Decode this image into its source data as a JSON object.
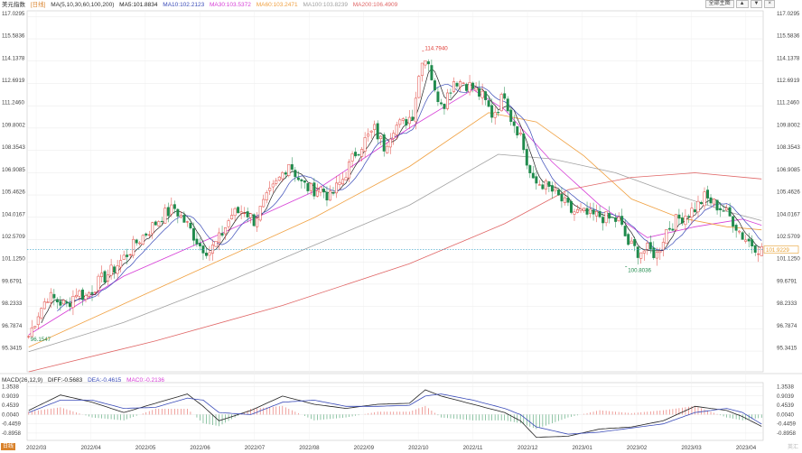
{
  "header": {
    "title": "美元指数",
    "period_tag": "[日线]",
    "ma_label": "MA(5,10,30,60,100,200)",
    "ma_items": [
      {
        "text": "MA5:101.8834",
        "color": "#222222"
      },
      {
        "text": "MA10:102.2123",
        "color": "#3a4bb8"
      },
      {
        "text": "MA30:103.5372",
        "color": "#d63cd6"
      },
      {
        "text": "MA60:103.2471",
        "color": "#f0a040"
      },
      {
        "text": "MA100:103.8239",
        "color": "#a0a0a0"
      },
      {
        "text": "MA200:106.4909",
        "color": "#e06666"
      }
    ]
  },
  "toolbar": {
    "btn1": "全部主图",
    "btn2": "▲",
    "btn3": "▼",
    "btn4": "×"
  },
  "macd_header": {
    "label": "MACD(26,12,9)",
    "diff": "DIFF:-0.5683",
    "dea": "DEA:-0.4615",
    "mac": "MAC0:-0.2136"
  },
  "period_label": "日线",
  "watermark": "英汇",
  "colors": {
    "up": "#e0413b",
    "down": "#1f8a4c",
    "grid": "#e8e8e8",
    "current": "#e8a030",
    "dotted": "#35a0c8"
  },
  "chart_data": [
    {
      "type": "candlestick",
      "title": "",
      "ylim": [
        94.0,
        117.4
      ],
      "y_ticks": [
        "117.0295",
        "115.5836",
        "114.1378",
        "112.6919",
        "111.2460",
        "109.8002",
        "108.3543",
        "106.9085",
        "105.4626",
        "104.0167",
        "102.5709",
        "101.1250",
        "99.6791",
        "98.2333",
        "96.7874",
        "95.3415"
      ],
      "y_tick_values": [
        117.0295,
        115.5836,
        114.1378,
        112.6919,
        111.246,
        109.8002,
        108.3543,
        106.9085,
        105.4626,
        104.0167,
        102.5709,
        101.125,
        99.6791,
        98.2333,
        96.7874,
        95.3415
      ],
      "x_labels": [
        "2022/03",
        "2022/04",
        "2022/05",
        "2022/06",
        "2022/07",
        "2022/08",
        "2022/09",
        "2022/10",
        "2022/11",
        "2022/12",
        "2023/01",
        "2023/02",
        "2023/03",
        "2023/04"
      ],
      "current_price": "101.9229",
      "current_value": 101.9229,
      "annotations": [
        {
          "text": "114.7940",
          "value": 114.794,
          "color": "#e0413b"
        },
        {
          "text": "100.8036",
          "value": 100.8036,
          "color": "#1f8a4c"
        },
        {
          "text": "96.1547",
          "value": 96.1547,
          "color": "#1f8a4c"
        }
      ],
      "price_path": [
        [
          0,
          96.3
        ],
        [
          3,
          97.8
        ],
        [
          6,
          98.9
        ],
        [
          9,
          98.6
        ],
        [
          12,
          98.3
        ],
        [
          15,
          99.2
        ],
        [
          18,
          98.9
        ],
        [
          22,
          99.8
        ],
        [
          26,
          100.5
        ],
        [
          30,
          101.4
        ],
        [
          34,
          102.4
        ],
        [
          38,
          103.2
        ],
        [
          42,
          104.1
        ],
        [
          46,
          104.6
        ],
        [
          50,
          103.5
        ],
        [
          54,
          102.2
        ],
        [
          57,
          101.8
        ],
        [
          60,
          102.6
        ],
        [
          64,
          104.2
        ],
        [
          68,
          104.5
        ],
        [
          71,
          103.8
        ],
        [
          75,
          105.2
        ],
        [
          79,
          106.5
        ],
        [
          82,
          107.6
        ],
        [
          86,
          106.2
        ],
        [
          89,
          105.8
        ],
        [
          92,
          105.9
        ],
        [
          95,
          105.3
        ],
        [
          99,
          106.5
        ],
        [
          103,
          108.2
        ],
        [
          106,
          109.0
        ],
        [
          109,
          109.7
        ],
        [
          112,
          108.6
        ],
        [
          115,
          109.9
        ],
        [
          118,
          110.1
        ],
        [
          121,
          110.7
        ],
        [
          124,
          114.4
        ],
        [
          126,
          114.2
        ],
        [
          128,
          112.0
        ],
        [
          131,
          111.5
        ],
        [
          134,
          112.9
        ],
        [
          137,
          112.8
        ],
        [
          140,
          112.4
        ],
        [
          143,
          111.8
        ],
        [
          146,
          110.7
        ],
        [
          148,
          111.2
        ],
        [
          150,
          112.1
        ],
        [
          152,
          110.5
        ],
        [
          155,
          109.4
        ],
        [
          157,
          107.5
        ],
        [
          159,
          106.2
        ],
        [
          162,
          106.2
        ],
        [
          165,
          105.7
        ],
        [
          168,
          105.1
        ],
        [
          171,
          104.4
        ],
        [
          174,
          104.3
        ],
        [
          177,
          104.1
        ],
        [
          180,
          104.1
        ],
        [
          183,
          103.9
        ],
        [
          186,
          103.8
        ],
        [
          189,
          102.3
        ],
        [
          192,
          101.8
        ],
        [
          195,
          101.9
        ],
        [
          198,
          101.6
        ],
        [
          201,
          103.2
        ],
        [
          204,
          103.8
        ],
        [
          207,
          104.2
        ],
        [
          210,
          104.6
        ],
        [
          213,
          105.3
        ],
        [
          216,
          104.9
        ],
        [
          219,
          104.5
        ],
        [
          222,
          103.8
        ],
        [
          225,
          102.8
        ],
        [
          228,
          102.3
        ],
        [
          231,
          101.9
        ]
      ],
      "ma_lines": [
        {
          "name": "MA30",
          "color": "#d63cd6",
          "points": [
            [
              0,
              96.4
            ],
            [
              30,
              100.2
            ],
            [
              60,
              102.9
            ],
            [
              90,
              105.7
            ],
            [
              120,
              109.8
            ],
            [
              140,
              112.3
            ],
            [
              150,
              111.0
            ],
            [
              165,
              107.6
            ],
            [
              180,
              104.8
            ],
            [
              195,
              102.7
            ],
            [
              210,
              103.4
            ],
            [
              225,
              103.9
            ],
            [
              231,
              103.5
            ]
          ]
        },
        {
          "name": "MA60",
          "color": "#f0a040",
          "points": [
            [
              0,
              95.6
            ],
            [
              30,
              98.4
            ],
            [
              60,
              101.2
            ],
            [
              90,
              104.0
            ],
            [
              120,
              107.3
            ],
            [
              145,
              110.8
            ],
            [
              160,
              110.2
            ],
            [
              175,
              108.0
            ],
            [
              190,
              105.2
            ],
            [
              205,
              104.0
            ],
            [
              220,
              103.4
            ],
            [
              231,
              103.2
            ]
          ]
        },
        {
          "name": "MA100",
          "color": "#a0a0a0",
          "points": [
            [
              0,
              95.3
            ],
            [
              30,
              97.2
            ],
            [
              60,
              99.6
            ],
            [
              90,
              102.2
            ],
            [
              120,
              104.8
            ],
            [
              148,
              108.1
            ],
            [
              165,
              107.8
            ],
            [
              185,
              106.9
            ],
            [
              205,
              105.4
            ],
            [
              220,
              104.4
            ],
            [
              231,
              103.8
            ]
          ]
        },
        {
          "name": "MA200",
          "color": "#e06666",
          "points": [
            [
              0,
              94.0
            ],
            [
              40,
              96.0
            ],
            [
              80,
              98.3
            ],
            [
              120,
              101.0
            ],
            [
              150,
              103.6
            ],
            [
              170,
              105.8
            ],
            [
              190,
              106.6
            ],
            [
              210,
              106.9
            ],
            [
              231,
              106.5
            ]
          ]
        }
      ]
    },
    {
      "type": "macd",
      "title": "",
      "ylim": [
        -1.25,
        1.55
      ],
      "y_ticks": [
        "1.3538",
        "0.9039",
        "0.4539",
        "0.0040",
        "-0.4459",
        "-0.8958"
      ],
      "y_tick_values": [
        1.3538,
        0.9039,
        0.4539,
        0.004,
        -0.4459,
        -0.8958
      ],
      "diff_path": [
        [
          0,
          0.2
        ],
        [
          10,
          0.95
        ],
        [
          20,
          0.6
        ],
        [
          30,
          0.1
        ],
        [
          40,
          0.55
        ],
        [
          50,
          1.0
        ],
        [
          55,
          0.4
        ],
        [
          60,
          -0.3
        ],
        [
          70,
          0.2
        ],
        [
          80,
          0.9
        ],
        [
          90,
          0.5
        ],
        [
          100,
          0.3
        ],
        [
          110,
          0.5
        ],
        [
          120,
          0.55
        ],
        [
          125,
          1.2
        ],
        [
          130,
          0.9
        ],
        [
          140,
          0.5
        ],
        [
          150,
          0.1
        ],
        [
          155,
          -0.3
        ],
        [
          160,
          -1.1
        ],
        [
          170,
          -1.05
        ],
        [
          180,
          -0.7
        ],
        [
          190,
          -0.6
        ],
        [
          200,
          -0.3
        ],
        [
          210,
          0.4
        ],
        [
          220,
          0.2
        ],
        [
          225,
          -0.1
        ],
        [
          231,
          -0.57
        ]
      ],
      "dea_path": [
        [
          0,
          0.1
        ],
        [
          10,
          0.7
        ],
        [
          20,
          0.7
        ],
        [
          30,
          0.3
        ],
        [
          40,
          0.35
        ],
        [
          50,
          0.8
        ],
        [
          55,
          0.7
        ],
        [
          60,
          0.1
        ],
        [
          70,
          0.0
        ],
        [
          80,
          0.6
        ],
        [
          90,
          0.7
        ],
        [
          100,
          0.4
        ],
        [
          110,
          0.4
        ],
        [
          120,
          0.45
        ],
        [
          125,
          0.9
        ],
        [
          130,
          1.0
        ],
        [
          140,
          0.7
        ],
        [
          150,
          0.3
        ],
        [
          155,
          0.0
        ],
        [
          160,
          -0.6
        ],
        [
          170,
          -0.95
        ],
        [
          180,
          -0.85
        ],
        [
          190,
          -0.65
        ],
        [
          200,
          -0.45
        ],
        [
          210,
          0.1
        ],
        [
          220,
          0.3
        ],
        [
          225,
          0.1
        ],
        [
          231,
          -0.46
        ]
      ]
    }
  ]
}
